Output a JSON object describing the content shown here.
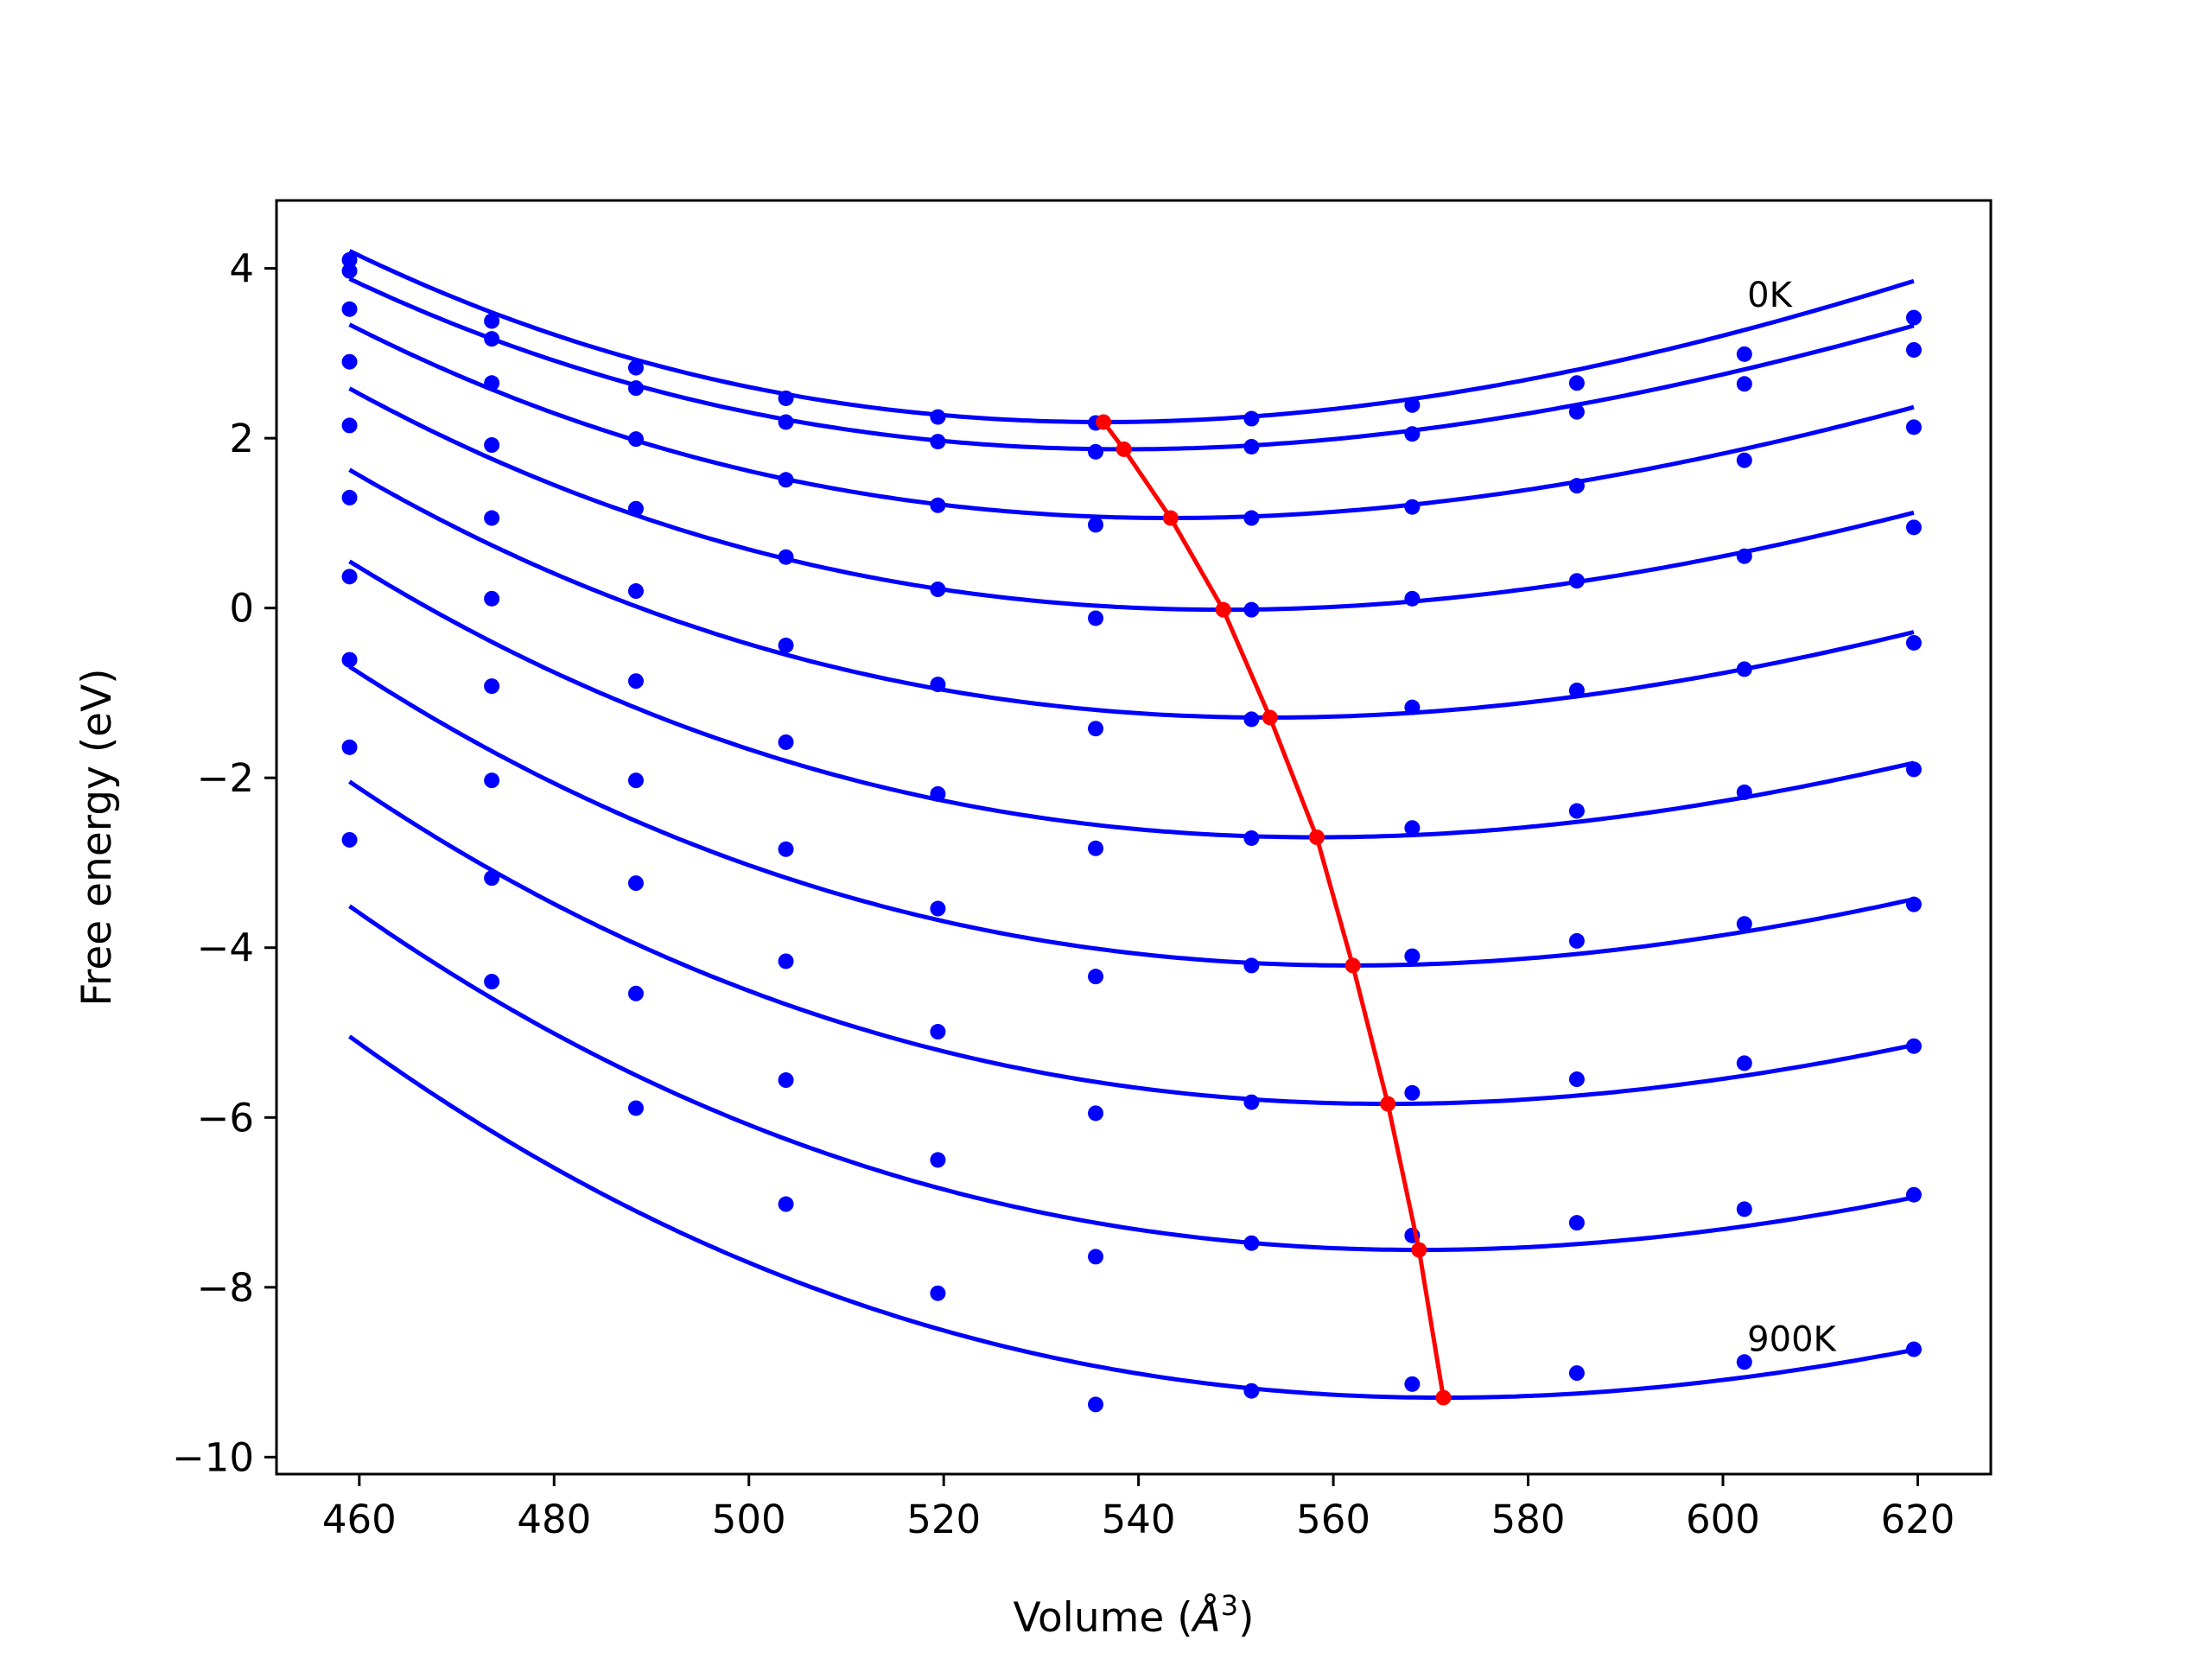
{
  "chart_data": {
    "type": "line",
    "title": "",
    "xlabel": "Volume (",
    "xlabel_symbol": "Å",
    "xlabel_exponent": "3",
    "xlabel_close": ")",
    "ylabel": "Free energy (eV)",
    "xlim": [
      451.5,
      627.5
    ],
    "ylim": [
      -10.2,
      4.8
    ],
    "xticks": [
      460,
      480,
      500,
      520,
      540,
      560,
      580,
      600,
      620
    ],
    "xtick_labels": [
      "460",
      "480",
      "500",
      "520",
      "540",
      "560",
      "580",
      "600",
      "620"
    ],
    "yticks": [
      4,
      2,
      0,
      -2,
      -4,
      -6,
      -8,
      -10
    ],
    "ytick_labels": [
      "4",
      "2",
      "0",
      "−2",
      "−4",
      "−6",
      "−8",
      "−10"
    ],
    "grid": false,
    "colors": {
      "curve": "#0000ff",
      "minima": "#ff0000",
      "axes": "#000000"
    },
    "annotations": [
      {
        "text": "0K",
        "x": 602.5,
        "y": 3.55
      },
      {
        "text": "900K",
        "x": 602.5,
        "y": -8.75
      }
    ],
    "volumes": [
      459,
      473.6,
      488.4,
      503.8,
      519.4,
      535.6,
      551.6,
      568.1,
      585,
      602.2,
      619.6
    ],
    "series": [
      {
        "values": [
          4.1,
          3.38,
          2.83,
          2.47,
          2.25,
          2.18,
          2.23,
          2.39,
          2.65,
          2.99,
          3.42
        ],
        "fit": {
          "vmin": 536.4,
          "fmin": 2.19,
          "a": 0.00029,
          "b": 6e-07
        }
      },
      {
        "values": [
          3.97,
          3.17,
          2.59,
          2.19,
          1.96,
          1.84,
          1.9,
          2.05,
          2.31,
          2.64,
          3.04
        ],
        "fit": {
          "vmin": 538.5,
          "fmin": 1.87,
          "a": 0.00027,
          "b": 6e-07
        }
      },
      {
        "values": [
          3.52,
          2.65,
          1.99,
          1.51,
          1.21,
          0.98,
          1.06,
          1.19,
          1.44,
          1.74,
          2.13
        ],
        "fit": {
          "vmin": 543.3,
          "fmin": 1.06,
          "a": 0.00027,
          "b": 6e-07
        }
      },
      {
        "values": [
          2.9,
          1.92,
          1.17,
          0.6,
          0.22,
          -0.12,
          -0.02,
          0.11,
          0.32,
          0.61,
          0.95
        ],
        "fit": {
          "vmin": 548.7,
          "fmin": -0.02,
          "a": 0.00027,
          "b": 6e-07
        }
      },
      {
        "values": [
          2.15,
          1.06,
          0.2,
          -0.44,
          -0.9,
          -1.42,
          -1.31,
          -1.17,
          -0.97,
          -0.72,
          -0.41
        ],
        "fit": {
          "vmin": 553.5,
          "fmin": -1.29,
          "a": 0.00027,
          "b": 6e-07
        }
      },
      {
        "values": [
          1.3,
          0.11,
          -0.86,
          -1.58,
          -2.19,
          -2.83,
          -2.71,
          -2.59,
          -2.39,
          -2.17,
          -1.9
        ],
        "fit": {
          "vmin": 558.3,
          "fmin": -2.7,
          "a": 0.00027,
          "b": 6e-07
        }
      },
      {
        "values": [
          0.37,
          -0.92,
          -2.03,
          -2.84,
          -3.54,
          -4.34,
          -4.21,
          -4.1,
          -3.92,
          -3.72,
          -3.49
        ],
        "fit": {
          "vmin": 562.0,
          "fmin": -4.21,
          "a": 0.00027,
          "b": 6e-07
        }
      },
      {
        "values": [
          -0.61,
          -2.03,
          -3.24,
          -4.16,
          -4.99,
          -5.95,
          -5.82,
          -5.71,
          -5.55,
          -5.36,
          -5.16
        ],
        "fit": {
          "vmin": 565.6,
          "fmin": -5.84,
          "a": 0.00027,
          "b": 6e-07
        }
      },
      {
        "values": [
          -1.64,
          -3.18,
          -4.54,
          -5.56,
          -6.5,
          -7.64,
          -7.48,
          -7.39,
          -7.24,
          -7.08,
          -6.91
        ],
        "fit": {
          "vmin": 568.8,
          "fmin": -7.56,
          "a": 0.00027,
          "b": 6e-07
        }
      },
      {
        "values": [
          -2.73,
          -4.4,
          -5.89,
          -7.02,
          -8.07,
          -9.38,
          -9.22,
          -9.14,
          -9.01,
          -8.88,
          -8.73
        ],
        "fit": {
          "vmin": 571.3,
          "fmin": -9.3,
          "a": 0.00027,
          "b": 6e-07
        }
      }
    ],
    "minima": {
      "x": [
        536.4,
        538.5,
        543.3,
        548.7,
        553.5,
        558.3,
        562.0,
        565.6,
        568.8,
        571.3
      ],
      "y": [
        2.19,
        1.87,
        1.06,
        -0.02,
        -1.29,
        -2.7,
        -4.21,
        -5.84,
        -7.56,
        -9.3
      ]
    }
  }
}
